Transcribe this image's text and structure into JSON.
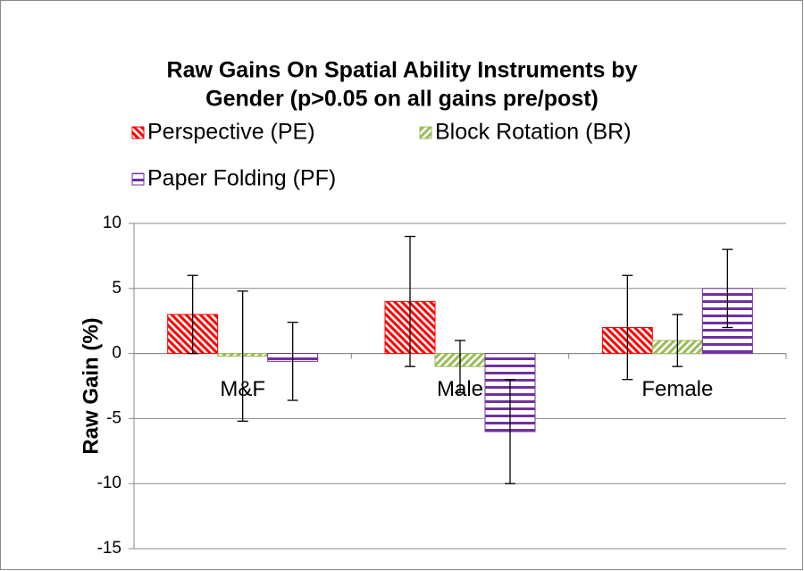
{
  "chart_data": {
    "type": "bar",
    "title": [
      "Raw Gains On Spatial Ability Instruments by",
      "Gender (p>0.05 on all gains pre/post)"
    ],
    "y_label": "Raw Gain (%)",
    "categories": [
      "M&F",
      "Male",
      "Female"
    ],
    "series": [
      {
        "name": "Perspective (PE)",
        "color": "#ff0000",
        "pattern": "diagonal-down",
        "values": [
          3,
          4,
          2
        ],
        "errors": [
          3,
          5,
          4
        ]
      },
      {
        "name": "Block Rotation (BR)",
        "color": "#9bbb59",
        "pattern": "diagonal-up",
        "values": [
          -0.2,
          -1,
          1
        ],
        "errors": [
          5,
          2,
          2
        ]
      },
      {
        "name": "Paper Folding (PF)",
        "color": "#7030a0",
        "pattern": "horizontal",
        "values": [
          -0.6,
          -6,
          5
        ],
        "errors": [
          3,
          4,
          3
        ]
      }
    ],
    "ylim": [
      -15,
      10
    ],
    "yticks": [
      -15,
      -10,
      -5,
      0,
      5,
      10
    ],
    "grid": true,
    "legend": "top"
  }
}
